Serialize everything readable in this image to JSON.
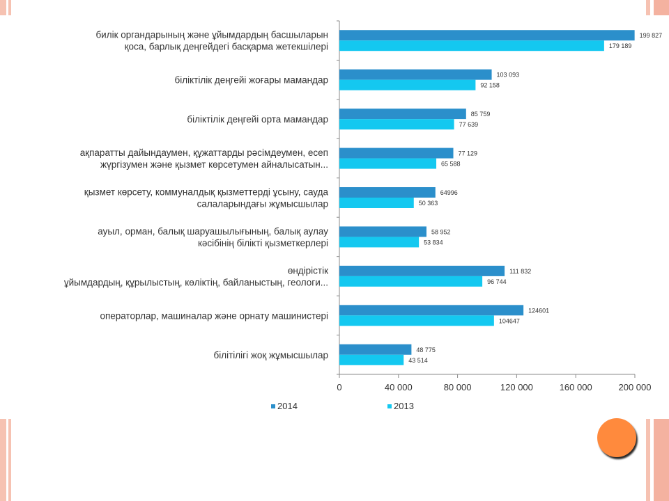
{
  "colors": {
    "series_2014": "#2b8fcb",
    "series_2013": "#14c8f0",
    "accent": "#ff8a3d",
    "stripe": "#f4b9a8"
  },
  "chart_data": {
    "type": "bar",
    "orientation": "horizontal",
    "categories": [
      [
        "билік органдарының және ұйымдардың басшыларын",
        "қоса, барлық деңгейдегі басқарма жетекшілері"
      ],
      [
        "біліктілік деңгейі жоғары мамандар"
      ],
      [
        "біліктілік деңгейі орта мамандар"
      ],
      [
        "ақпаратты дайындаумен, құжаттарды рәсімдеумен, есеп",
        "жүргізумен және қызмет көрсетумен айналысатын..."
      ],
      [
        "қызмет көрсету, коммуналдық қызметтерді ұсыну, сауда",
        "салаларындағы жұмысшылар"
      ],
      [
        "ауыл, орман, балық шаруашылығының, балық аулау",
        "кәсібінің білікті қызметкерлері"
      ],
      [
        "өндірістік",
        "ұйымдардың, құрылыстың, көліктің, байланыстың, геологи..."
      ],
      [
        "операторлар, машиналар және орнату машинистері"
      ],
      [
        "білітілігі жоқ жұмысшылар"
      ]
    ],
    "series": [
      {
        "name": "2014",
        "values": [
          199827,
          103093,
          85759,
          77129,
          64996,
          58952,
          111832,
          124601,
          48775
        ],
        "labels": [
          "199 827",
          "103 093",
          "85 759",
          "77 129",
          "64996",
          "58 952",
          "111 832",
          "124601",
          "48 775"
        ]
      },
      {
        "name": "2013",
        "values": [
          179189,
          92158,
          77639,
          65588,
          50363,
          53834,
          96744,
          104647,
          43514
        ],
        "labels": [
          "179 189",
          "92 158",
          "77 639",
          "65 588",
          "50 363",
          "53 834",
          "96 744",
          "104647",
          "43 514"
        ]
      }
    ],
    "xlim": [
      0,
      200000
    ],
    "xticks": [
      0,
      40000,
      80000,
      120000,
      160000,
      200000
    ],
    "xtick_labels": [
      "0",
      "40 000",
      "80 000",
      "120 000",
      "160 000",
      "200 000"
    ],
    "legend_position": "bottom",
    "grid": false
  }
}
